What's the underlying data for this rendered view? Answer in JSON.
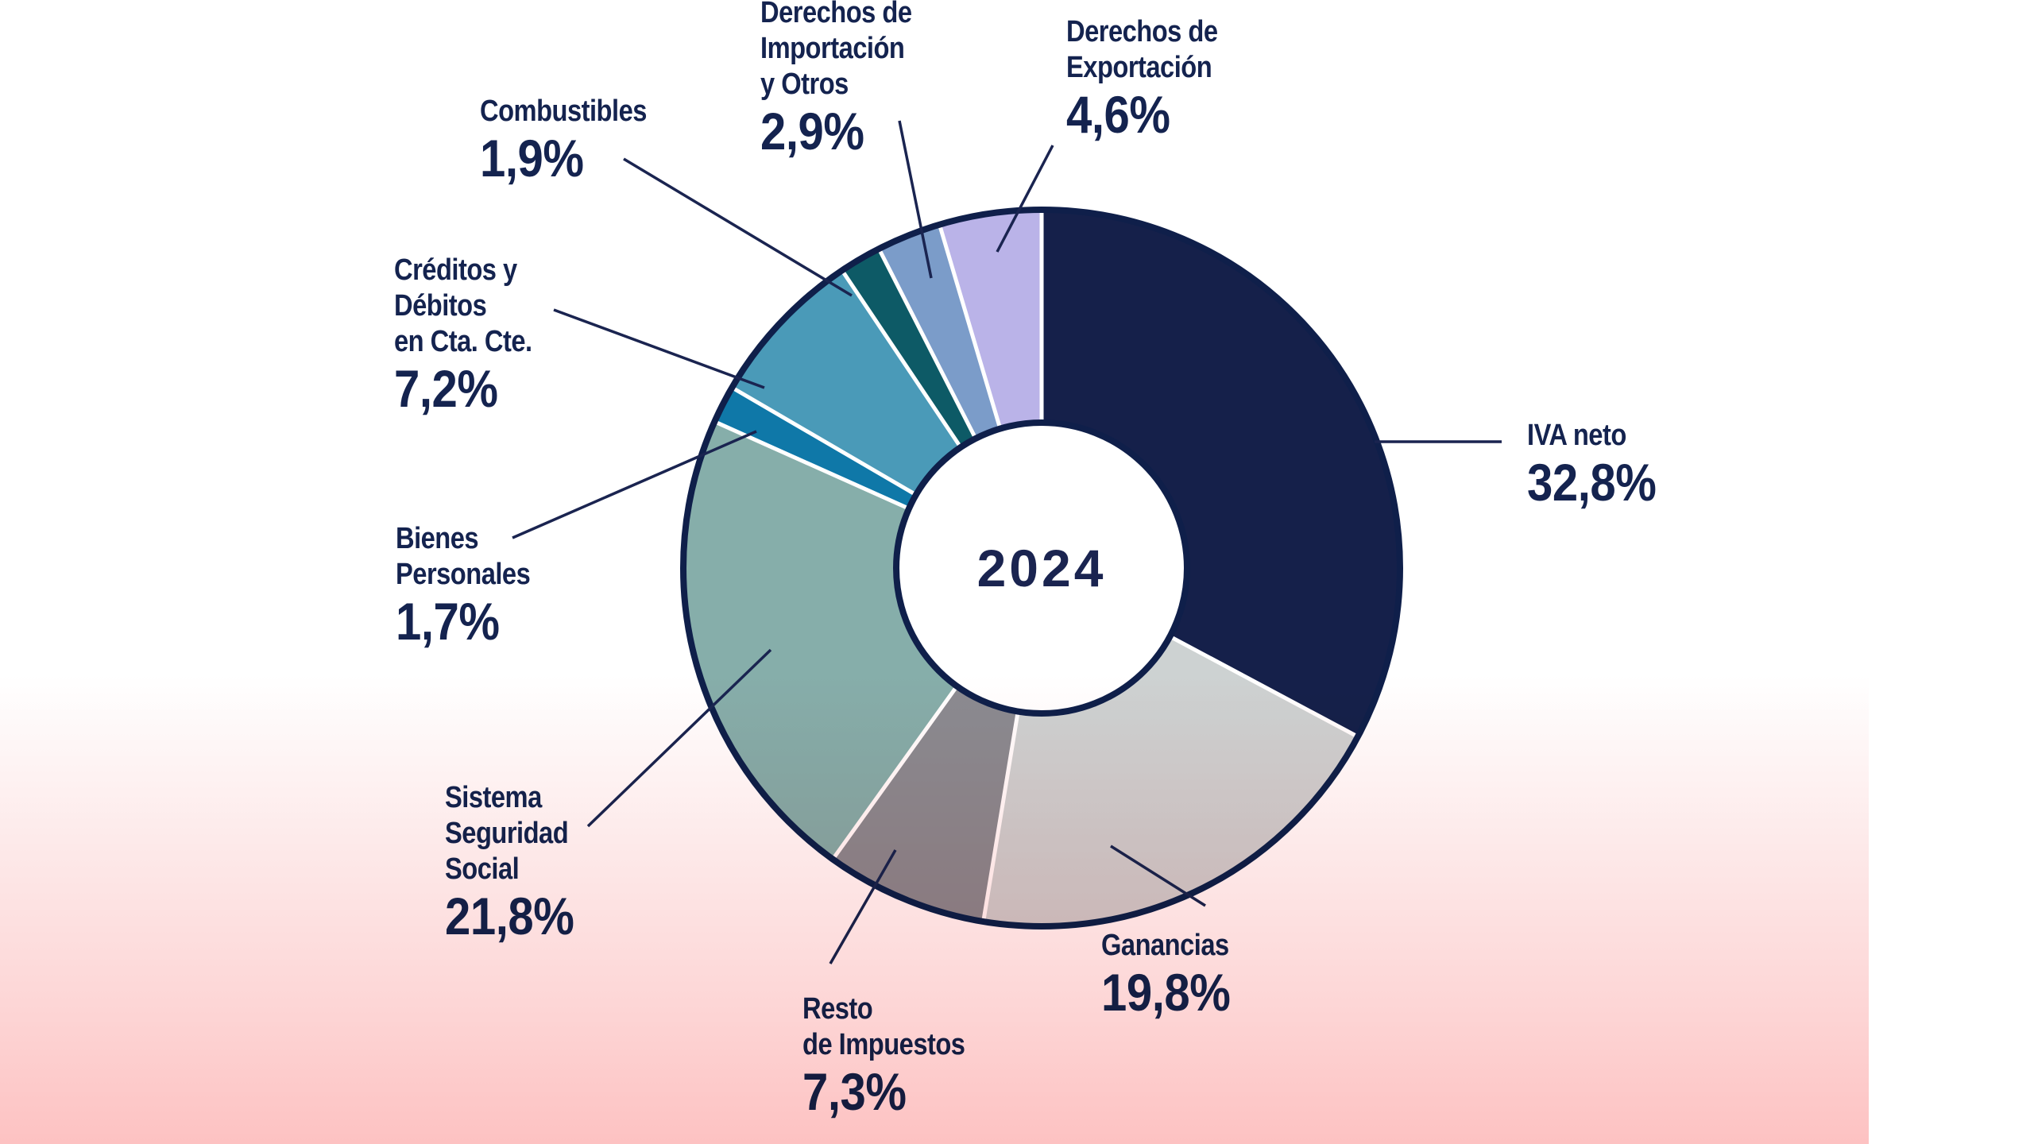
{
  "chart_data": {
    "type": "pie",
    "variant": "donut",
    "center_label": "2024",
    "start": "top",
    "direction": "clockwise",
    "slices": [
      {
        "key": "iva",
        "label_lines": [
          "IVA neto"
        ],
        "value": 32.8,
        "value_label": "32,8%",
        "color": "#15204a"
      },
      {
        "key": "ganancias",
        "label_lines": [
          "Ganancias"
        ],
        "value": 19.8,
        "value_label": "19,8%",
        "color": "#cdd2d2"
      },
      {
        "key": "resto",
        "label_lines": [
          "Resto",
          "de Impuestos"
        ],
        "value": 7.3,
        "value_label": "7,3%",
        "color": "#8b8b91"
      },
      {
        "key": "seguridad",
        "label_lines": [
          "Sistema",
          "Seguridad",
          "Social"
        ],
        "value": 21.8,
        "value_label": "21,8%",
        "color": "#86aeaa"
      },
      {
        "key": "bienes",
        "label_lines": [
          "Bienes",
          "Personales"
        ],
        "value": 1.7,
        "value_label": "1,7%",
        "color": "#0f78a8"
      },
      {
        "key": "creditos",
        "label_lines": [
          "Créditos y",
          "Débitos",
          "en Cta. Cte."
        ],
        "value": 7.2,
        "value_label": "7,2%",
        "color": "#4a9ab8"
      },
      {
        "key": "combustibles",
        "label_lines": [
          "Combustibles"
        ],
        "value": 1.9,
        "value_label": "1,9%",
        "color": "#0d5a66"
      },
      {
        "key": "importacion",
        "label_lines": [
          "Derechos de",
          "Importación",
          "y Otros"
        ],
        "value": 2.9,
        "value_label": "2,9%",
        "color": "#7b9cc9"
      },
      {
        "key": "exportacion",
        "label_lines": [
          "Derechos de",
          "Exportación"
        ],
        "value": 4.6,
        "value_label": "4,6%",
        "color": "#bab3e8"
      }
    ],
    "outline_color": "#0f1f4a",
    "separator_color": "#ffffff",
    "leader_color": "#1a2450"
  }
}
